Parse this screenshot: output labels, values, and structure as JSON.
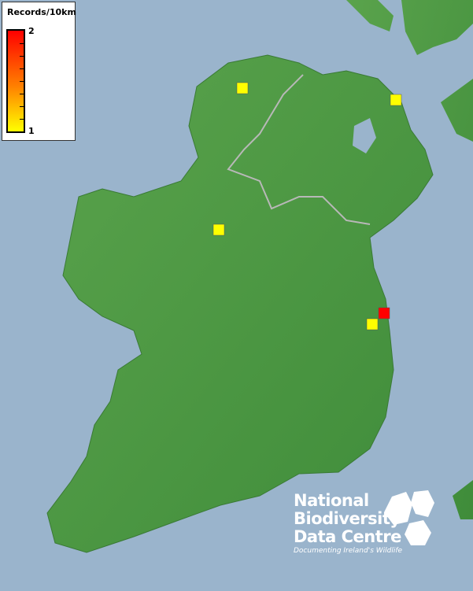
{
  "legend": {
    "title": "Records/10km",
    "max_label": "2",
    "min_label": "1",
    "color_max": "#ff0000",
    "color_min": "#ffff00"
  },
  "map": {
    "sea_color": "#9ab4cc",
    "land_color": "#4f9a45",
    "records": [
      {
        "place": "Donegal",
        "value": 1
      },
      {
        "place": "Antrim",
        "value": 1
      },
      {
        "place": "Sligo/Leitrim",
        "value": 1
      },
      {
        "place": "Dublin coast",
        "value": 2
      },
      {
        "place": "Wicklow",
        "value": 1
      }
    ]
  },
  "logo": {
    "line1": "National",
    "line2": "Biodiversity",
    "line3": "Data Centre",
    "tagline": "Documenting Ireland's Wildlife"
  }
}
